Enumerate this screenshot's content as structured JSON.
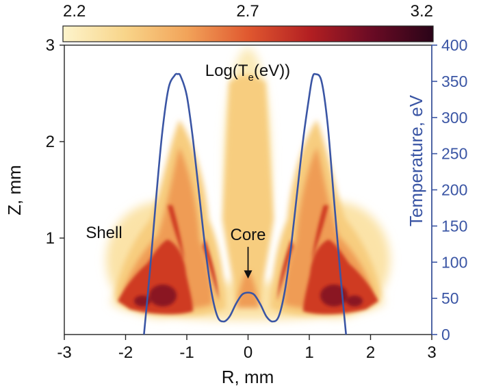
{
  "chart_data": {
    "type": "heatmap",
    "title": "Log(T_e(eV))",
    "title_parts": {
      "main": "Log(T",
      "sub": "e",
      "tail": "(eV))"
    },
    "xlabel": "R, mm",
    "ylabel": "Z, mm",
    "ylabel_right": "Temperature, eV",
    "xlim": [
      -3,
      3
    ],
    "ylim": [
      0,
      3
    ],
    "ylim_right": [
      0,
      400
    ],
    "x_ticks": [
      "-3",
      "-2",
      "-1",
      "0",
      "1",
      "2",
      "3"
    ],
    "y_ticks": [
      "1",
      "2",
      "3"
    ],
    "y_right_ticks": [
      "0",
      "50",
      "100",
      "150",
      "200",
      "250",
      "300",
      "350",
      "400"
    ],
    "colorbar": {
      "range": [
        2.2,
        3.2
      ],
      "ticks": [
        "2.2",
        "2.7",
        "3.2"
      ],
      "colors": [
        "#fdf4cc",
        "#f8d58a",
        "#f2a45a",
        "#e0582f",
        "#b31f22",
        "#6a0b24",
        "#2a0418"
      ]
    },
    "series": [
      {
        "name": "Temperature, eV",
        "color": "#3a55a4",
        "x": [
          -1.7,
          -1.6,
          -1.5,
          -1.4,
          -1.3,
          -1.2,
          -1.15,
          -1.1,
          -1.0,
          -0.9,
          -0.8,
          -0.7,
          -0.6,
          -0.5,
          -0.4,
          -0.3,
          -0.2,
          -0.1,
          0.0,
          0.1,
          0.2,
          0.3,
          0.4,
          0.5,
          0.6,
          0.7,
          0.8,
          0.9,
          1.0,
          1.05,
          1.1,
          1.2,
          1.3,
          1.4,
          1.5,
          1.6
        ],
        "y": [
          0,
          90,
          190,
          280,
          340,
          358,
          360,
          357,
          330,
          270,
          195,
          120,
          60,
          25,
          18,
          25,
          42,
          55,
          58,
          55,
          42,
          25,
          18,
          25,
          60,
          120,
          195,
          270,
          330,
          355,
          360,
          350,
          290,
          190,
          90,
          0
        ]
      }
    ],
    "annotations": [
      {
        "text": "Shell",
        "x": -2.65,
        "y": 1.0
      },
      {
        "text": "Core",
        "x": 0.0,
        "y": 0.98,
        "arrow_to": [
          0.0,
          0.58
        ]
      }
    ]
  }
}
